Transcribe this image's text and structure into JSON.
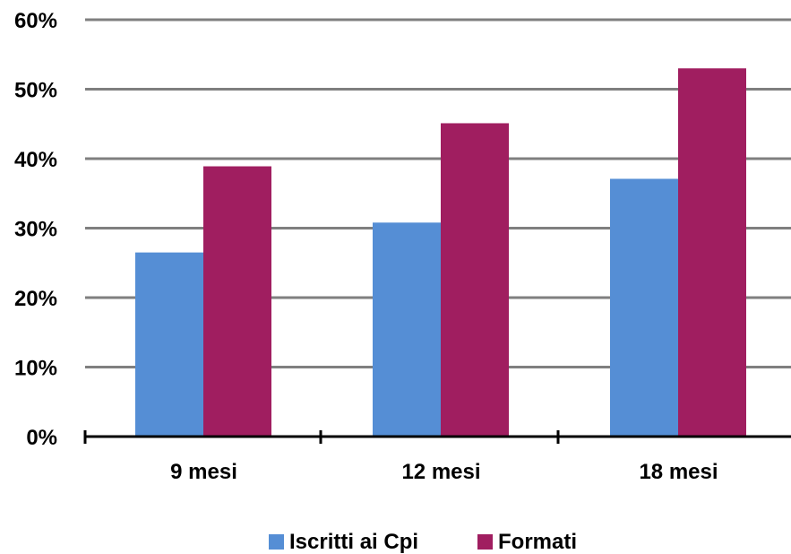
{
  "chart_data": {
    "type": "bar",
    "categories": [
      "9 mesi",
      "12 mesi",
      "18 mesi"
    ],
    "series": [
      {
        "name": "Iscritti ai Cpi",
        "values": [
          26.5,
          30.8,
          37.1
        ],
        "color": "#558ED5"
      },
      {
        "name": "Formati",
        "values": [
          38.9,
          45.1,
          53.0
        ],
        "color": "#A01E60"
      }
    ],
    "ylim": [
      0,
      60
    ],
    "yticks": [
      0,
      10,
      20,
      30,
      40,
      50,
      60
    ],
    "ytick_labels": [
      "0%",
      "10%",
      "20%",
      "30%",
      "40%",
      "50%",
      "60%"
    ],
    "grid": true,
    "legend_position": "bottom",
    "title": "",
    "xlabel": "",
    "ylabel": ""
  }
}
